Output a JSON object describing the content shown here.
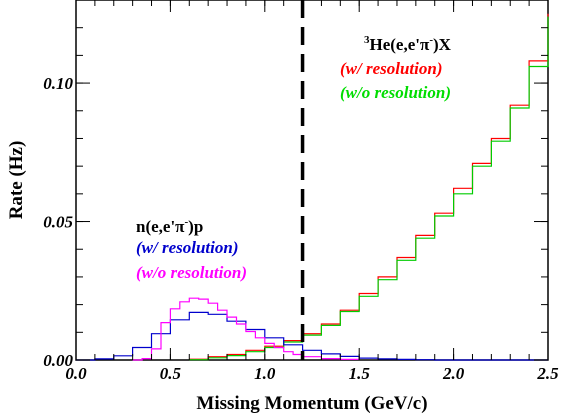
{
  "chart_data": {
    "type": "line",
    "title": "",
    "xlabel": "Missing Momentum (GeV/c)",
    "ylabel": "Rate (Hz)",
    "xlim": [
      0.0,
      2.5
    ],
    "ylim": [
      0.0,
      0.13
    ],
    "x_ticks": [
      "0.0",
      "0.5",
      "1.0",
      "1.5",
      "2.0",
      "2.5"
    ],
    "y_ticks": [
      "0.00",
      "0.05",
      "0.10"
    ],
    "y_tick_values": [
      0.0,
      0.05,
      0.1
    ],
    "x_tick_values": [
      0.0,
      0.5,
      1.0,
      1.5,
      2.0,
      2.5
    ],
    "cut_line_x": 1.2,
    "grid": false,
    "annotations": {
      "he3": {
        "mass": "3",
        "reaction": "He(e,e'π",
        "charge": "-",
        "tail": ")X",
        "with": "(w/ resolution)",
        "without": "(w/o resolution)"
      },
      "neutron": {
        "reaction": "n(e,e'π",
        "charge": "-",
        "tail": ")p",
        "with": "(w/ resolution)",
        "without": "(w/o resolution)"
      }
    },
    "series": [
      {
        "color": "#ff0000",
        "x": [
          0.6,
          0.7,
          0.8,
          0.9,
          1.0,
          1.1,
          1.2,
          1.3,
          1.4,
          1.5,
          1.6,
          1.7,
          1.8,
          1.9,
          2.0,
          2.1,
          2.2,
          2.3,
          2.4,
          2.5
        ],
        "y": [
          0.0003,
          0.0012,
          0.002,
          0.0035,
          0.005,
          0.007,
          0.0095,
          0.013,
          0.018,
          0.024,
          0.03,
          0.037,
          0.045,
          0.053,
          0.062,
          0.071,
          0.08,
          0.092,
          0.108,
          0.125
        ]
      },
      {
        "color": "#00cc00",
        "x": [
          0.6,
          0.7,
          0.8,
          0.9,
          1.0,
          1.1,
          1.2,
          1.3,
          1.4,
          1.5,
          1.6,
          1.7,
          1.8,
          1.9,
          2.0,
          2.1,
          2.2,
          2.3,
          2.4,
          2.5
        ],
        "y": [
          0.0001,
          0.0008,
          0.0016,
          0.003,
          0.0045,
          0.0065,
          0.009,
          0.0125,
          0.0175,
          0.023,
          0.029,
          0.036,
          0.044,
          0.052,
          0.06,
          0.07,
          0.079,
          0.091,
          0.106,
          0.124
        ]
      },
      {
        "color": "#0000cc",
        "x": [
          0.0,
          0.1,
          0.2,
          0.3,
          0.4,
          0.5,
          0.6,
          0.7,
          0.8,
          0.9,
          1.0,
          1.1,
          1.2,
          1.3,
          1.4,
          1.5,
          1.6,
          1.7,
          1.8,
          1.9,
          2.0,
          2.1,
          2.2,
          2.3,
          2.4,
          2.5
        ],
        "y": [
          0.0,
          0.0004,
          0.0015,
          0.0045,
          0.0095,
          0.0145,
          0.0172,
          0.0165,
          0.014,
          0.011,
          0.008,
          0.0055,
          0.0035,
          0.0022,
          0.0013,
          0.0007,
          0.0004,
          0.0002,
          0.0001,
          0.0,
          0.0,
          0.0,
          0.0,
          0.0,
          0.0,
          0.0
        ]
      },
      {
        "color": "#ff00ff",
        "x": [
          0.3,
          0.35,
          0.4,
          0.45,
          0.5,
          0.55,
          0.6,
          0.65,
          0.7,
          0.75,
          0.8,
          0.85,
          0.9,
          0.95,
          1.0,
          1.05,
          1.1,
          1.15,
          1.2,
          1.3,
          1.4,
          1.5
        ],
        "y": [
          0.0,
          0.0005,
          0.004,
          0.0135,
          0.0185,
          0.021,
          0.0223,
          0.022,
          0.0205,
          0.018,
          0.0155,
          0.013,
          0.0103,
          0.008,
          0.006,
          0.0045,
          0.003,
          0.002,
          0.0012,
          0.0005,
          0.0002,
          0.0
        ]
      }
    ]
  }
}
